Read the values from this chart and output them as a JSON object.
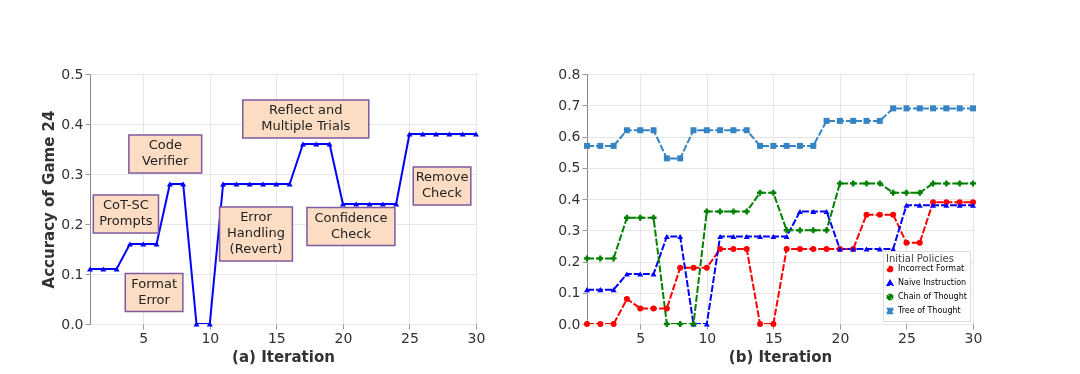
{
  "chart_data": [
    {
      "type": "line",
      "xlabel": "(a) Iteration",
      "ylabel": "Accuracy of Game 24",
      "x": [
        1,
        2,
        3,
        4,
        5,
        6,
        7,
        8,
        9,
        10,
        11,
        12,
        13,
        14,
        15,
        16,
        17,
        18,
        19,
        20,
        21,
        22,
        23,
        24,
        25,
        26,
        27,
        28,
        29,
        30
      ],
      "series": [
        {
          "color": "#0000ff",
          "marker": "triangle",
          "line_style": "solid",
          "values": [
            0.11,
            0.11,
            0.11,
            0.16,
            0.16,
            0.16,
            0.28,
            0.28,
            0,
            0,
            0.28,
            0.28,
            0.28,
            0.28,
            0.28,
            0.28,
            0.36,
            0.36,
            0.36,
            0.24,
            0.24,
            0.24,
            0.24,
            0.24,
            0.38,
            0.38,
            0.38,
            0.38,
            0.38,
            0.38
          ]
        }
      ],
      "xlim": [
        1,
        30
      ],
      "xticks": [
        5,
        10,
        15,
        20,
        25,
        30
      ],
      "ylim": [
        0,
        0.5
      ],
      "yticks": [
        {
          "value": 0,
          "label": "0.0"
        },
        0.1,
        0.2,
        0.3,
        0.4,
        0.5
      ],
      "grid": true,
      "annotations": [
        "CoT-SC\nPrompts",
        "Code\nVerifier",
        "Format\nError",
        "Error\nHandling\n(Revert)",
        "Reflect and\nMultiple Trials",
        "Confidence\nCheck",
        "Remove\nCheck"
      ]
    },
    {
      "type": "line",
      "xlabel": "(b) Iteration",
      "legend_title": "Initial Policies",
      "legend": "bottom right",
      "x": [
        1,
        2,
        3,
        4,
        5,
        6,
        7,
        8,
        9,
        10,
        11,
        12,
        13,
        14,
        15,
        16,
        17,
        18,
        19,
        20,
        21,
        22,
        23,
        24,
        25,
        26,
        27,
        28,
        29,
        30
      ],
      "series": [
        {
          "name": "Incorrect Format",
          "color": "#ff0000",
          "marker": "circle",
          "line_style": "dashed",
          "values": [
            0,
            0,
            0,
            0.08,
            0.05,
            0.05,
            0.05,
            0.18,
            0.18,
            0.18,
            0.24,
            0.24,
            0.24,
            0,
            0,
            0.24,
            0.24,
            0.24,
            0.24,
            0.24,
            0.24,
            0.35,
            0.35,
            0.35,
            0.26,
            0.26,
            0.39,
            0.39,
            0.39,
            0.39
          ]
        },
        {
          "name": "Naive Instruction",
          "color": "#0000ff",
          "marker": "triangle",
          "line_style": "dashed",
          "values": [
            0.11,
            0.11,
            0.11,
            0.16,
            0.16,
            0.16,
            0.28,
            0.28,
            0,
            0,
            0.28,
            0.28,
            0.28,
            0.28,
            0.28,
            0.28,
            0.36,
            0.36,
            0.36,
            0.24,
            0.24,
            0.24,
            0.24,
            0.24,
            0.38,
            0.38,
            0.38,
            0.38,
            0.38,
            0.38
          ]
        },
        {
          "name": "Chain of Thought",
          "color": "#008000",
          "marker": "cross",
          "line_style": "dashed",
          "values": [
            0.21,
            0.21,
            0.21,
            0.34,
            0.34,
            0.34,
            0,
            0,
            0,
            0.36,
            0.36,
            0.36,
            0.36,
            0.42,
            0.42,
            0.3,
            0.3,
            0.3,
            0.3,
            0.45,
            0.45,
            0.45,
            0.45,
            0.42,
            0.42,
            0.42,
            0.45,
            0.45,
            0.45,
            0.45
          ]
        },
        {
          "name": "Tree of Thought",
          "color": "#3585c4",
          "marker": "square",
          "line_style": "dashed",
          "values": [
            0.57,
            0.57,
            0.57,
            0.62,
            0.62,
            0.62,
            0.53,
            0.53,
            0.62,
            0.62,
            0.62,
            0.62,
            0.62,
            0.57,
            0.57,
            0.57,
            0.57,
            0.57,
            0.65,
            0.65,
            0.65,
            0.65,
            0.65,
            0.69,
            0.69,
            0.69,
            0.69,
            0.69,
            0.69,
            0.69
          ]
        }
      ],
      "xlim": [
        1,
        30
      ],
      "xticks": [
        5,
        10,
        15,
        20,
        25,
        30
      ],
      "ylim": [
        0,
        0.8
      ],
      "yticks": [
        {
          "value": 0,
          "label": "0.0"
        },
        0.1,
        0.2,
        0.3,
        0.4,
        0.5,
        0.6,
        0.7,
        0.8
      ],
      "grid": true
    }
  ]
}
